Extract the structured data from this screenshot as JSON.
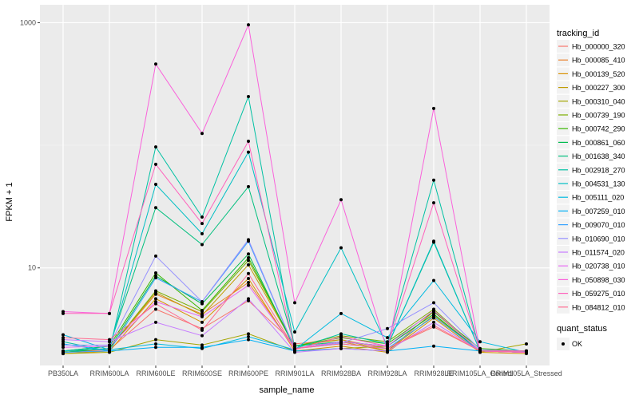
{
  "chart_data": {
    "type": "line",
    "title": "",
    "xlabel": "sample_name",
    "ylabel": "FPKM + 1",
    "y_scale": "log10",
    "ylim": [
      1.6,
      1400
    ],
    "y_ticks": [
      10,
      1000
    ],
    "y_tick_labels": [
      "10",
      "1000"
    ],
    "grid": true,
    "legend_position": "right",
    "categories": [
      "PB350LA",
      "RRIM600LA",
      "RRIM600LE",
      "RRIM600SE",
      "RRIM600PE",
      "RRIM901LA",
      "RRIM928BA",
      "RRIM928LA",
      "RRIM928LE",
      "RRIM105LA_Control",
      "RRIM105LA_Stressed"
    ],
    "series": [
      {
        "name": "Hb_000000_320",
        "color": "#F8766D",
        "values": [
          2.05,
          2.15,
          4.6,
          3.2,
          5.4,
          2.4,
          2.6,
          2.2,
          3.3,
          2.1,
          2.05
        ]
      },
      {
        "name": "Hb_000085_410",
        "color": "#EA8331",
        "values": [
          2.1,
          2.2,
          6.1,
          4.2,
          7.6,
          2.2,
          2.5,
          2.1,
          4.4,
          2.1,
          2.1
        ]
      },
      {
        "name": "Hb_000139_520",
        "color": "#D89000",
        "values": [
          2.0,
          2.1,
          5.6,
          3.6,
          8.2,
          2.1,
          2.3,
          2.05,
          3.9,
          2.05,
          2.0
        ]
      },
      {
        "name": "Hb_000227_300",
        "color": "#C09B00",
        "values": [
          2.05,
          2.2,
          6.3,
          4.1,
          10.6,
          2.3,
          2.6,
          2.1,
          4.1,
          2.1,
          2.05
        ]
      },
      {
        "name": "Hb_000310_040",
        "color": "#A3A500",
        "values": [
          2.0,
          2.05,
          2.6,
          2.35,
          2.9,
          2.1,
          2.2,
          2.3,
          4.2,
          2.05,
          2.4
        ]
      },
      {
        "name": "Hb_000739_190",
        "color": "#7CAE00",
        "values": [
          2.1,
          2.2,
          6.5,
          4.4,
          11.5,
          2.3,
          2.8,
          2.5,
          4.6,
          2.1,
          2.1
        ]
      },
      {
        "name": "Hb_000742_290",
        "color": "#39B600",
        "values": [
          2.1,
          2.3,
          9.1,
          4.5,
          12.1,
          2.3,
          2.7,
          2.4,
          4.4,
          2.2,
          2.1
        ]
      },
      {
        "name": "Hb_000861_060",
        "color": "#00BB4E",
        "values": [
          2.05,
          2.2,
          8.6,
          5.1,
          13.0,
          2.2,
          2.5,
          2.3,
          4.2,
          2.1,
          2.05
        ]
      },
      {
        "name": "Hb_001638_340",
        "color": "#00BF7D",
        "values": [
          2.1,
          2.3,
          31.0,
          15.5,
          46.0,
          2.3,
          2.5,
          2.3,
          16.2,
          2.1,
          2.1
        ]
      },
      {
        "name": "Hb_002918_270",
        "color": "#00C1A3",
        "values": [
          2.5,
          2.1,
          97.0,
          26.0,
          250.0,
          2.2,
          2.9,
          2.4,
          52.0,
          2.1,
          2.1
        ]
      },
      {
        "name": "Hb_004531_130",
        "color": "#00BFC4",
        "values": [
          2.1,
          2.2,
          48.0,
          19.0,
          88.0,
          3.0,
          14.6,
          2.3,
          16.5,
          2.1,
          2.1
        ]
      },
      {
        "name": "Hb_005111_020",
        "color": "#00BAE0",
        "values": [
          2.85,
          2.15,
          2.4,
          2.2,
          2.75,
          2.15,
          4.25,
          2.7,
          7.9,
          2.5,
          2.05
        ]
      },
      {
        "name": "Hb_007259_010",
        "color": "#00B0F6",
        "values": [
          2.4,
          2.1,
          2.25,
          2.25,
          2.6,
          2.1,
          2.2,
          2.1,
          2.3,
          2.1,
          2.05
        ]
      },
      {
        "name": "Hb_009070_010",
        "color": "#35A2FF",
        "values": [
          2.05,
          2.1,
          8.3,
          5.3,
          16.5,
          2.2,
          2.4,
          2.2,
          4.0,
          2.1,
          2.05
        ]
      },
      {
        "name": "Hb_010690_010",
        "color": "#9590FF",
        "values": [
          2.35,
          2.35,
          12.5,
          5.3,
          17.0,
          2.2,
          2.45,
          3.2,
          5.2,
          2.15,
          2.1
        ]
      },
      {
        "name": "Hb_011574_020",
        "color": "#C77CFF",
        "values": [
          2.6,
          2.5,
          3.6,
          2.8,
          5.6,
          2.05,
          2.2,
          2.1,
          3.6,
          2.1,
          2.05
        ]
      },
      {
        "name": "Hb_020738_010",
        "color": "#E76BF3",
        "values": [
          2.25,
          2.3,
          5.3,
          4.0,
          7.2,
          2.2,
          2.5,
          2.3,
          4.5,
          2.1,
          2.1
        ]
      },
      {
        "name": "Hb_050898_030",
        "color": "#FA62DB",
        "values": [
          4.4,
          4.25,
          460.0,
          125.0,
          960.0,
          5.2,
          36.0,
          2.1,
          200.0,
          2.1,
          2.05
        ]
      },
      {
        "name": "Hb_059275_010",
        "color": "#FF62BC",
        "values": [
          4.25,
          4.25,
          70.0,
          23.0,
          108.0,
          2.15,
          2.75,
          2.3,
          34.0,
          2.1,
          2.05
        ]
      },
      {
        "name": "Hb_084812_010",
        "color": "#FF6C91",
        "values": [
          2.7,
          2.6,
          5.1,
          3.1,
          9.0,
          2.2,
          2.4,
          2.2,
          3.4,
          2.1,
          2.1
        ]
      }
    ],
    "legend_title": "tracking_id",
    "shape_legend_title": "quant_status",
    "shape_legend_entries": [
      "OK"
    ]
  }
}
